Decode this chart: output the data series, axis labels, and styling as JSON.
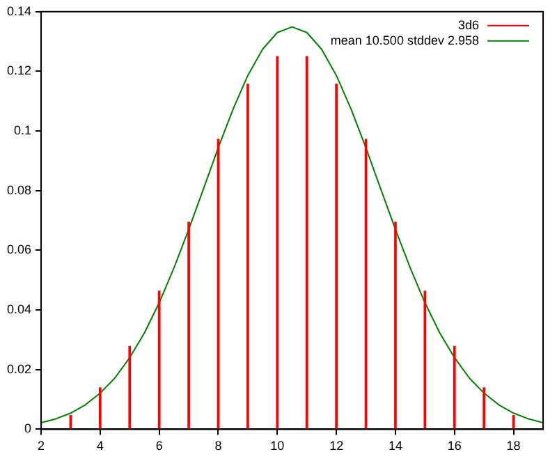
{
  "chart_data": {
    "type": "bar",
    "legend": "top right",
    "grid": false,
    "xlim": [
      2,
      19
    ],
    "xticks": [
      2,
      4,
      6,
      8,
      10,
      12,
      14,
      16,
      18
    ],
    "ylim": [
      0,
      0.14
    ],
    "yticks": [
      0,
      0.02,
      0.04,
      0.06,
      0.08,
      0.1,
      0.12,
      0.14
    ],
    "series": [
      {
        "name": "3d6",
        "color": "#ff0000",
        "x": [
          3,
          4,
          5,
          6,
          7,
          8,
          9,
          10,
          11,
          12,
          13,
          14,
          15,
          16,
          17,
          18
        ],
        "values": [
          0.0046,
          0.0139,
          0.0278,
          0.0463,
          0.0694,
          0.0972,
          0.1157,
          0.125,
          0.125,
          0.1157,
          0.0972,
          0.0694,
          0.0463,
          0.0278,
          0.0139,
          0.0046
        ]
      },
      {
        "name": "mean 10.500 stddev 2.958",
        "type": "line",
        "color": "#008000",
        "marker": "none",
        "x": [
          2,
          2.5,
          3,
          3.5,
          4,
          4.5,
          5,
          5.5,
          6,
          6.5,
          7,
          7.5,
          8,
          8.5,
          9,
          9.5,
          10,
          10.5,
          11,
          11.5,
          12,
          12.5,
          13,
          13.5,
          14,
          14.5,
          15,
          15.5,
          16,
          16.5,
          17,
          17.5,
          18,
          18.5,
          19
        ],
        "values": [
          0.0022,
          0.0035,
          0.0054,
          0.0082,
          0.0121,
          0.0172,
          0.024,
          0.0323,
          0.0424,
          0.0541,
          0.067,
          0.0806,
          0.0944,
          0.1073,
          0.1186,
          0.1274,
          0.133,
          0.1349,
          0.133,
          0.1274,
          0.1186,
          0.1073,
          0.0944,
          0.0806,
          0.067,
          0.0541,
          0.0424,
          0.0323,
          0.024,
          0.0172,
          0.0121,
          0.0082,
          0.0054,
          0.0035,
          0.0022
        ]
      }
    ]
  }
}
